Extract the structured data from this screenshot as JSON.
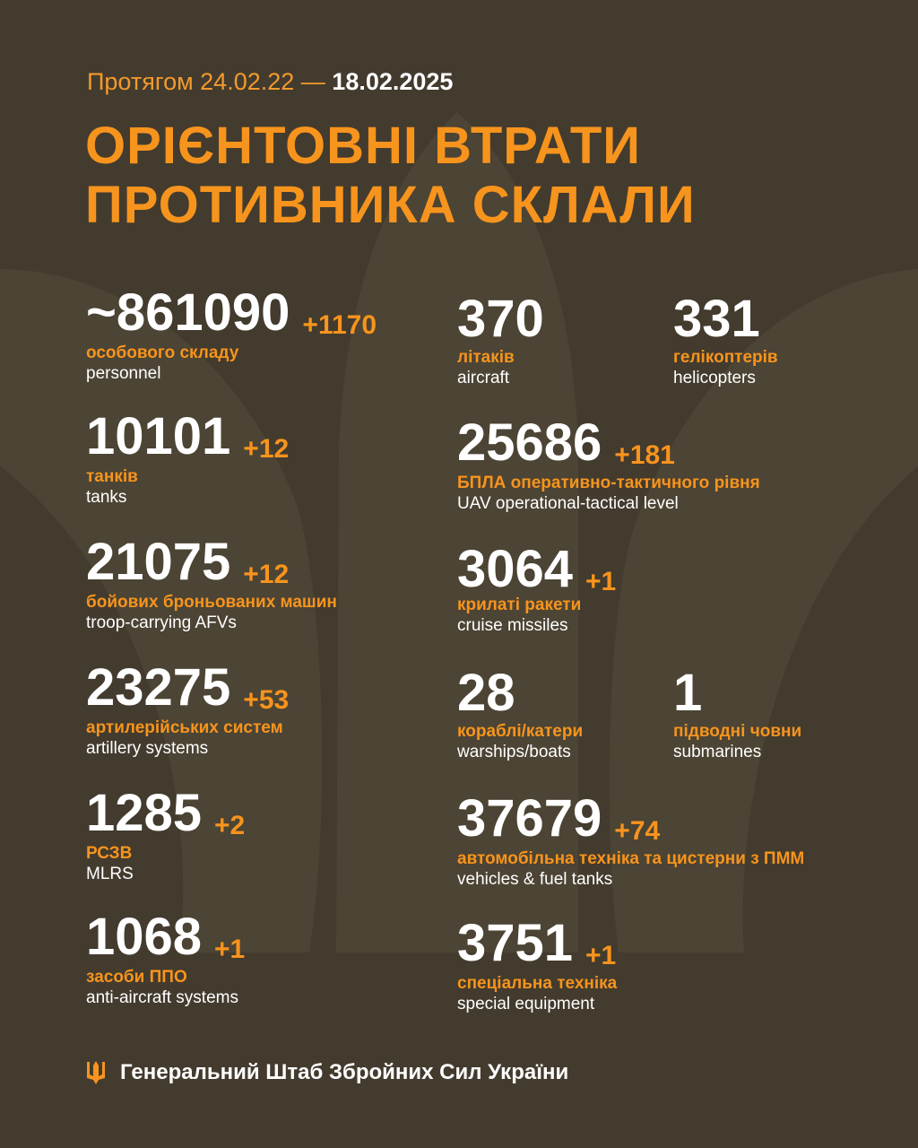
{
  "header": {
    "period_prefix": "Протягом 24.02.22 —",
    "period_end": "18.02.2025",
    "title_line1": "ОРІЄНТОВНІ ВТРАТИ",
    "title_line2": "ПРОТИВНИКА СКЛАЛИ"
  },
  "left": [
    {
      "value": "~861090",
      "delta": "+1170",
      "ua": "особового складу",
      "en": "personnel"
    },
    {
      "value": "10101",
      "delta": "+12",
      "ua": "танків",
      "en": "tanks"
    },
    {
      "value": "21075",
      "delta": "+12",
      "ua": "бойових броньованих машин",
      "en": "troop-carrying AFVs"
    },
    {
      "value": "23275",
      "delta": "+53",
      "ua": "артилерійських систем",
      "en": "artillery systems"
    },
    {
      "value": "1285",
      "delta": "+2",
      "ua": "РСЗВ",
      "en": "MLRS"
    },
    {
      "value": "1068",
      "delta": "+1",
      "ua": "засоби ППО",
      "en": "anti-aircraft systems"
    }
  ],
  "right": [
    {
      "value": "370",
      "delta": "",
      "ua": "літаків",
      "en": "aircraft"
    },
    {
      "value": "331",
      "delta": "",
      "ua": "гелікоптерів",
      "en": "helicopters"
    },
    {
      "value": "25686",
      "delta": "+181",
      "ua": "БПЛА оперативно-тактичного рівня",
      "en": "UAV operational-tactical level"
    },
    {
      "value": "3064",
      "delta": "+1",
      "ua": "крилаті ракети",
      "en": "cruise missiles"
    },
    {
      "value": "28",
      "delta": "",
      "ua": "кораблі/катери",
      "en": "warships/boats"
    },
    {
      "value": "1",
      "delta": "",
      "ua": "підводні човни",
      "en": "submarines"
    },
    {
      "value": "37679",
      "delta": "+74",
      "ua": "автомобільна техніка та цистерни з ПММ",
      "en": "vehicles & fuel tanks"
    },
    {
      "value": "3751",
      "delta": "+1",
      "ua": "спеціальна техніка",
      "en": "special equipment"
    }
  ],
  "footer": {
    "text": "Генеральний Штаб Збройних Сил України",
    "icon": "trident-icon"
  },
  "colors": {
    "background": "#433b2e",
    "accent": "#f7941d",
    "text": "#ffffff"
  }
}
